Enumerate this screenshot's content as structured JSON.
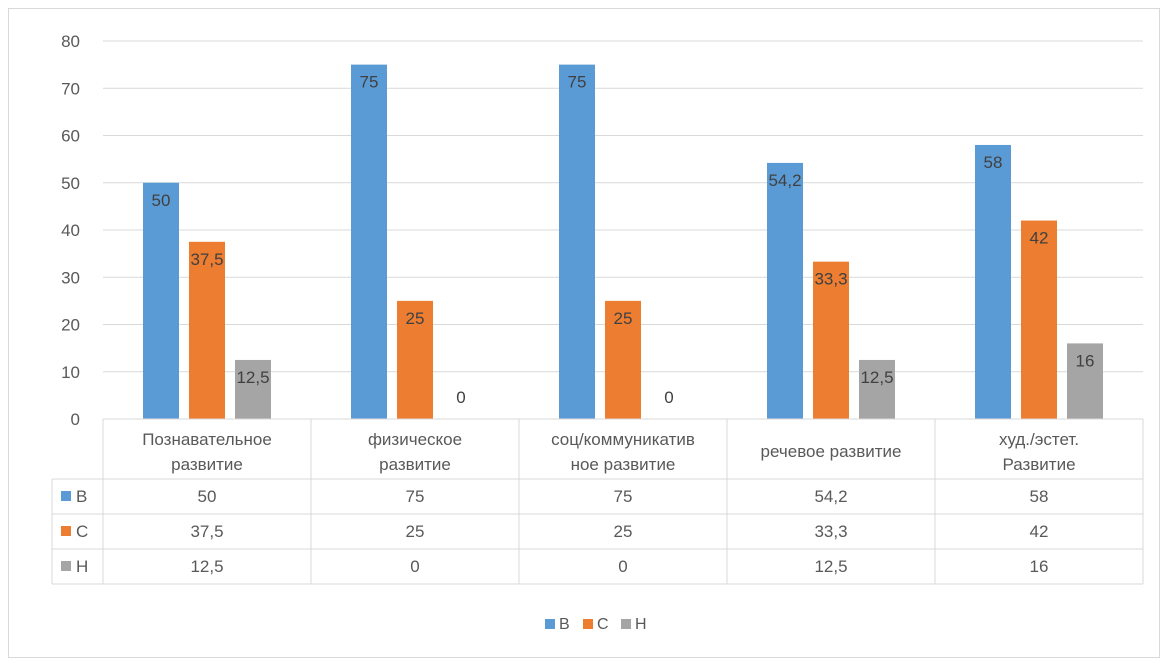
{
  "chart_data": {
    "type": "bar",
    "categories": [
      [
        "Познавательное",
        "развитие"
      ],
      [
        "физическое",
        "развитие"
      ],
      [
        "соц/коммуникатив",
        "ное развитие"
      ],
      [
        "речевое развитие"
      ],
      [
        "худ./эстет.",
        "Развитие"
      ]
    ],
    "series": [
      {
        "name": "В",
        "color": "#5b9bd5",
        "values": [
          50,
          75,
          75,
          54.2,
          58
        ],
        "labels": [
          "50",
          "75",
          "75",
          "54,2",
          "58"
        ]
      },
      {
        "name": "С",
        "color": "#ed7d31",
        "values": [
          37.5,
          25,
          25,
          33.3,
          42
        ],
        "labels": [
          "37,5",
          "25",
          "25",
          "33,3",
          "42"
        ]
      },
      {
        "name": "Н",
        "color": "#a5a5a5",
        "values": [
          12.5,
          0,
          0,
          12.5,
          16
        ],
        "labels": [
          "12,5",
          "0",
          "0",
          "12,5",
          "16"
        ]
      }
    ],
    "ylim": [
      0,
      80
    ],
    "yticks": [
      "0",
      "10",
      "20",
      "30",
      "40",
      "50",
      "60",
      "70",
      "80"
    ],
    "grid": true,
    "data_table": true,
    "legend_position": "bottom",
    "title": "",
    "xlabel": "",
    "ylabel": ""
  }
}
